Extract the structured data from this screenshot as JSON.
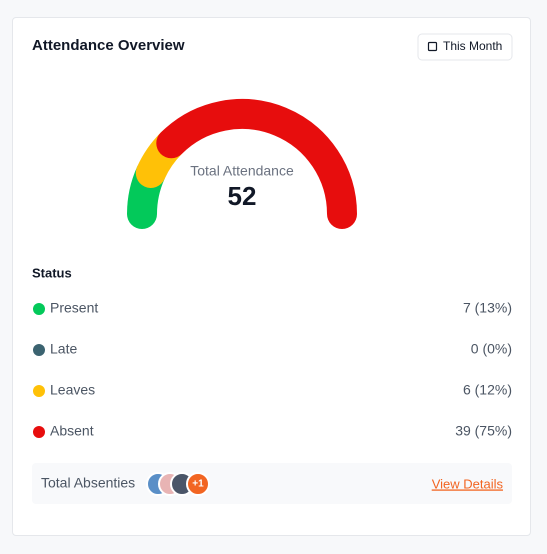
{
  "header": {
    "title": "Attendance Overview",
    "button": "This Month"
  },
  "gauge": {
    "label": "Total Attendance",
    "total": 52
  },
  "status": {
    "title": "Status",
    "items": [
      {
        "name": "Present",
        "color": "#03c95a",
        "value": 7,
        "value_label": "7 (13%)"
      },
      {
        "name": "Late",
        "color": "#3b6370",
        "value": 0,
        "value_label": "0 (0%)"
      },
      {
        "name": "Leaves",
        "color": "#ffc107",
        "value": 6,
        "value_label": "6 (12%)"
      },
      {
        "name": "Absent",
        "color": "#e70d0d",
        "value": 39,
        "value_label": "39 (75%)"
      }
    ]
  },
  "footer": {
    "label": "Total Absenties",
    "more": "+1",
    "link": "View Details"
  }
}
